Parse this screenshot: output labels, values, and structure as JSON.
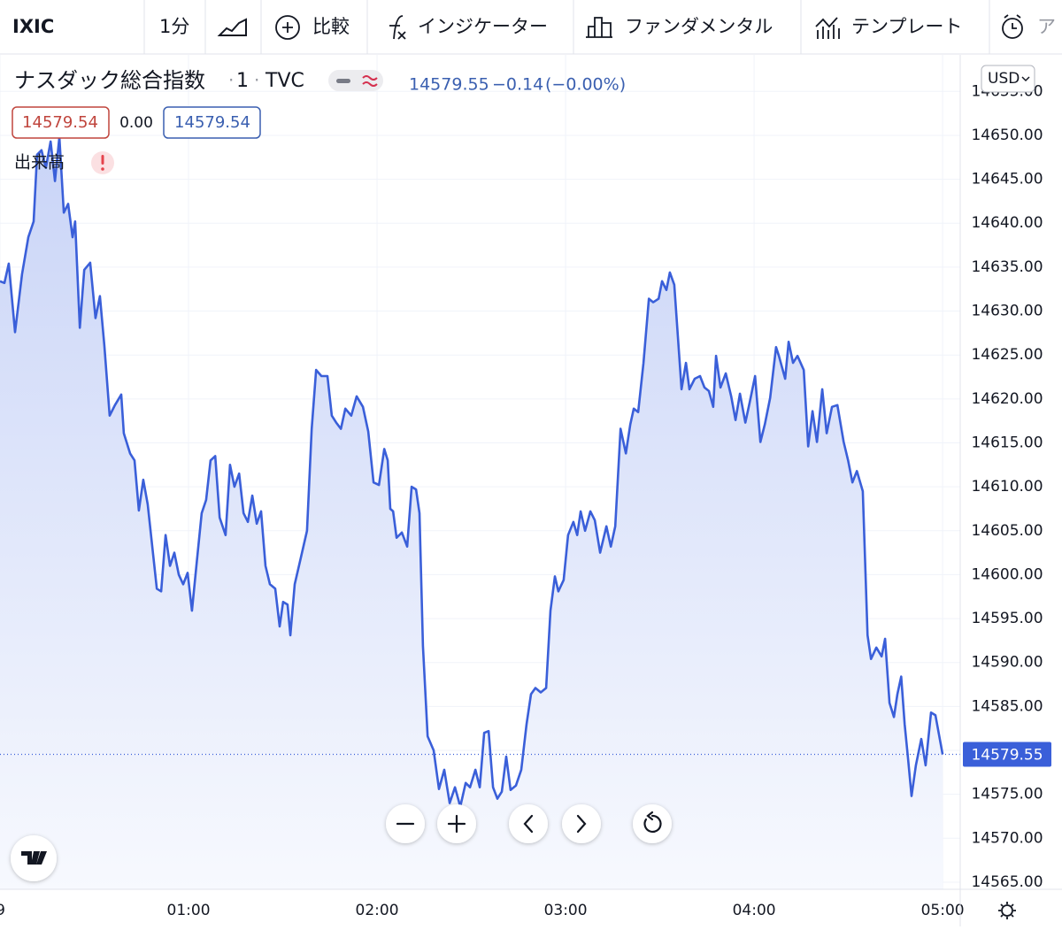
{
  "toolbar": {
    "symbol": "IXIC",
    "interval": "1分",
    "compare": "比較",
    "indicators": "インジケーター",
    "fundamentals": "ファンダメンタル",
    "templates": "テンプレート",
    "alert": "ア"
  },
  "header": {
    "name": "ナスダック総合指数",
    "interval": "1",
    "exchange": "TVC",
    "price": "14579.55",
    "change": "−0.14",
    "change_pct": "(−0.00%)",
    "boxes": [
      "14579.54",
      "0.00",
      "14579.54"
    ],
    "volume": "出来高"
  },
  "currency": "USD",
  "chart_data": {
    "type": "line",
    "color": "#3a5fd9",
    "grid": true,
    "last_value": 14579.55,
    "x": [
      0,
      1.4,
      2.8,
      4.8,
      7.0,
      9.0,
      10.7,
      11.8,
      13.2,
      14.6,
      16.1,
      17.5,
      18.9,
      20.3,
      21.7,
      23.1,
      23.9,
      25.4,
      26.8,
      28.7,
      30.4,
      31.8,
      33.2,
      34.9,
      36.6,
      38.6,
      39.4,
      41.4,
      42.8,
      44.2,
      45.6,
      47.0,
      49.9,
      51.3,
      52.7,
      54.1,
      55.5,
      56.9,
      58.3,
      59.7,
      61.1,
      62.5,
      64.2,
      65.6,
      67.0,
      68.5,
      69.9,
      71.8,
      73.2,
      74.6,
      76.1,
      77.5,
      78.9,
      80.3,
      81.7,
      83.1,
      84.5,
      85.9,
      87.6,
      89.0,
      90.1,
      91.5,
      92.4,
      93.8,
      95.8,
      97.7,
      99.2,
      100.6,
      102.3,
      104.2,
      105.6,
      107.0,
      108.5,
      109.9,
      111.8,
      113.5,
      115.5,
      117.2,
      118.9,
      120.6,
      122.3,
      123.4,
      124.2,
      125.1,
      126.2,
      127.9,
      129.6,
      131.0,
      132.4,
      133.5,
      134.6,
      136.1,
      138.0,
      139.7,
      141.4,
      143.1,
      144.8,
      146.5,
      148.2,
      149.6,
      151.3,
      152.7,
      154.1,
      155.5,
      156.9,
      158.3,
      159.7,
      161.1,
      162.5,
      164.2,
      165.9,
      167.6,
      169.0,
      170.4,
      172.1,
      173.8,
      175.2,
      176.6,
      177.7,
      179.4,
      180.8,
      182.5,
      183.7,
      184.8,
      186.2,
      187.9,
      189.3,
      191.0,
      193.0,
      194.4,
      195.8,
      197.5,
      199.2,
      200.6,
      201.7,
      203.1,
      204.8,
      206.5,
      207.9,
      209.6,
      210.7,
      212.1,
      213.2,
      214.6,
      216.9,
      218.3,
      219.4,
      221.1,
      222.8,
      224.2,
      225.6,
      227.0,
      227.9,
      229.3,
      231.0,
      232.7,
      234.1,
      235.5,
      237.2,
      238.6,
      240.3,
      242.0,
      243.4,
      245.1,
      247.0,
      247.9,
      249.9,
      251.0,
      252.4,
      253.8,
      255.8,
      257.2,
      258.6,
      260.0,
      261.7,
      263.1,
      264.8,
      266.5,
      268.5,
      269.9,
      271.3,
      272.7,
      274.6,
      276.1,
      277.2,
      278.9,
      280.6,
      281.7,
      283.1,
      284.5,
      285.6,
      286.8,
      287.9,
      289.0,
      290.1,
      291.5,
      293.2,
      294.6,
      296.3,
      297.7,
      300.0
    ],
    "values": [
      14633.4,
      14633.2,
      14635.4,
      14627.6,
      14634.2,
      14638.4,
      14640.2,
      14647.8,
      14648.3,
      14646.3,
      14649.3,
      14644.8,
      14649.8,
      14641.2,
      14642.2,
      14638.4,
      14640.2,
      14628.1,
      14634.7,
      14635.5,
      14629.2,
      14631.7,
      14626.1,
      14618.1,
      14619.3,
      14620.5,
      14616.1,
      14613.8,
      14613.0,
      14607.3,
      14610.8,
      14608.0,
      14598.4,
      14598.1,
      14604.5,
      14601.0,
      14602.5,
      14600.0,
      14598.9,
      14600.2,
      14595.9,
      14601.0,
      14607.0,
      14608.5,
      14613.0,
      14613.5,
      14606.5,
      14604.5,
      14612.5,
      14610.0,
      14611.5,
      14607.0,
      14606.0,
      14609.0,
      14605.8,
      14607.2,
      14601.0,
      14598.9,
      14598.4,
      14594.1,
      14596.9,
      14596.6,
      14593.1,
      14598.9,
      14602.0,
      14605.0,
      14616.6,
      14623.3,
      14622.6,
      14622.6,
      14618.1,
      14617.3,
      14616.6,
      14618.9,
      14618.1,
      14620.3,
      14619.1,
      14616.3,
      14610.5,
      14610.2,
      14614.3,
      14613.0,
      14607.5,
      14607.2,
      14604.2,
      14604.8,
      14603.2,
      14610.0,
      14609.7,
      14607.0,
      14591.9,
      14581.6,
      14580.0,
      14575.6,
      14577.8,
      14574.0,
      14575.8,
      14573.6,
      14576.3,
      14575.8,
      14577.8,
      14575.8,
      14582.0,
      14582.2,
      14575.8,
      14574.5,
      14575.3,
      14579.3,
      14575.5,
      14576.0,
      14577.8,
      14583.0,
      14586.4,
      14587.1,
      14586.6,
      14587.1,
      14595.9,
      14599.8,
      14598.1,
      14599.4,
      14604.5,
      14606.0,
      14604.5,
      14607.2,
      14605.0,
      14607.2,
      14606.2,
      14602.5,
      14605.5,
      14603.2,
      14605.5,
      14616.6,
      14613.8,
      14617.1,
      14618.9,
      14618.5,
      14624.1,
      14631.4,
      14631.0,
      14631.4,
      14633.4,
      14632.4,
      14634.4,
      14633.0,
      14621.1,
      14624.1,
      14621.1,
      14622.3,
      14622.6,
      14621.3,
      14620.9,
      14619.1,
      14624.9,
      14621.3,
      14622.9,
      14620.3,
      14617.6,
      14620.6,
      14617.3,
      14619.6,
      14622.6,
      14615.1,
      14617.1,
      14620.1,
      14625.9,
      14624.9,
      14622.3,
      14626.5,
      14624.1,
      14624.9,
      14623.3,
      14614.6,
      14618.6,
      14615.1,
      14621.1,
      14616.1,
      14619.1,
      14619.3,
      14615.1,
      14613.0,
      14610.5,
      14611.8,
      14609.5,
      14593.1,
      14590.4,
      14591.7,
      14590.7,
      14592.7,
      14585.4,
      14583.8,
      14586.4,
      14588.4,
      14583.0,
      14579.0,
      14574.8,
      14578.3,
      14581.3,
      14578.3,
      14584.3,
      14584.0,
      14579.55
    ],
    "xlim": [
      0,
      305.6
    ],
    "xticks": [
      {
        "value": 0,
        "label": "9"
      },
      {
        "value": 60,
        "label": "01:00"
      },
      {
        "value": 120,
        "label": "02:00"
      },
      {
        "value": 180,
        "label": "03:00"
      },
      {
        "value": 240,
        "label": "04:00"
      },
      {
        "value": 300,
        "label": "05:00"
      }
    ],
    "ylim": [
      14564.19,
      14659.16
    ],
    "yticks": [
      {
        "value": 14565,
        "label": "14565.00"
      },
      {
        "value": 14570,
        "label": "14570.00"
      },
      {
        "value": 14575,
        "label": "14575.00"
      },
      {
        "value": 14580,
        "label": "14580.00"
      },
      {
        "value": 14585,
        "label": "14585.00"
      },
      {
        "value": 14590,
        "label": "14590.00"
      },
      {
        "value": 14595,
        "label": "14595.00"
      },
      {
        "value": 14600,
        "label": "14600.00"
      },
      {
        "value": 14605,
        "label": "14605.00"
      },
      {
        "value": 14610,
        "label": "14610.00"
      },
      {
        "value": 14615,
        "label": "14615.00"
      },
      {
        "value": 14620,
        "label": "14620.00"
      },
      {
        "value": 14625,
        "label": "14625.00"
      },
      {
        "value": 14630,
        "label": "14630.00"
      },
      {
        "value": 14635,
        "label": "14635.00"
      },
      {
        "value": 14640,
        "label": "14640.00"
      },
      {
        "value": 14645,
        "label": "14645.00"
      },
      {
        "value": 14650,
        "label": "14650.00"
      },
      {
        "value": 14655,
        "label": "14655.00"
      }
    ]
  }
}
